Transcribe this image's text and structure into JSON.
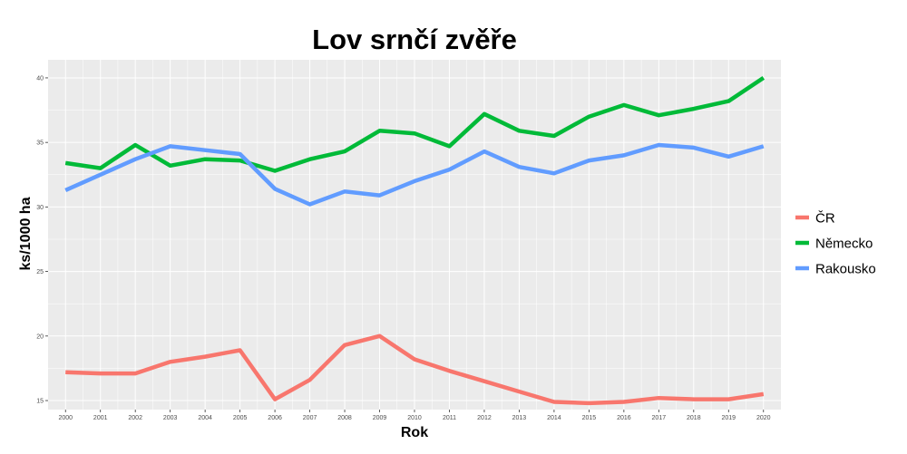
{
  "chart_data": {
    "type": "line",
    "title": "Lov srnčí zvěře",
    "xlabel": "Rok",
    "ylabel": "ks/1000 ha",
    "x": [
      2000,
      2001,
      2002,
      2003,
      2004,
      2005,
      2006,
      2007,
      2008,
      2009,
      2010,
      2011,
      2012,
      2013,
      2014,
      2015,
      2016,
      2017,
      2018,
      2019,
      2020
    ],
    "x_tick_labels": [
      "2000",
      "2001",
      "2002",
      "2003",
      "2004",
      "2005",
      "2006",
      "2007",
      "2008",
      "2009",
      "2010",
      "2011",
      "2012",
      "2013",
      "2014",
      "2015",
      "2016",
      "2017",
      "2018",
      "2019",
      "2020"
    ],
    "ylim": [
      14.3,
      41.4
    ],
    "y_ticks": [
      15,
      20,
      25,
      30,
      35,
      40
    ],
    "y_tick_labels": [
      "15",
      "20",
      "25",
      "30",
      "35",
      "40"
    ],
    "grid": true,
    "legend_position": "right",
    "background_color": "#ebebeb",
    "grid_color": "#ffffff",
    "series": [
      {
        "name": "ČR",
        "color": "#f8766d",
        "values": [
          17.2,
          17.1,
          17.1,
          18.0,
          18.4,
          18.9,
          15.1,
          16.6,
          19.3,
          20.0,
          18.2,
          17.3,
          16.5,
          15.7,
          14.9,
          14.8,
          14.9,
          15.2,
          15.1,
          15.1,
          15.5
        ]
      },
      {
        "name": "Německo",
        "color": "#00ba38",
        "values": [
          33.4,
          33.0,
          34.8,
          33.2,
          33.7,
          33.6,
          32.8,
          33.7,
          34.3,
          35.9,
          35.7,
          34.7,
          37.2,
          35.9,
          35.5,
          37.0,
          37.9,
          37.1,
          37.6,
          38.2,
          40.0
        ]
      },
      {
        "name": "Rakousko",
        "color": "#619cff",
        "values": [
          31.3,
          32.5,
          33.7,
          34.7,
          34.4,
          34.1,
          31.4,
          30.2,
          31.2,
          30.9,
          32.0,
          32.9,
          34.3,
          33.1,
          32.6,
          33.6,
          34.0,
          34.8,
          34.6,
          33.9,
          34.7
        ]
      }
    ]
  }
}
